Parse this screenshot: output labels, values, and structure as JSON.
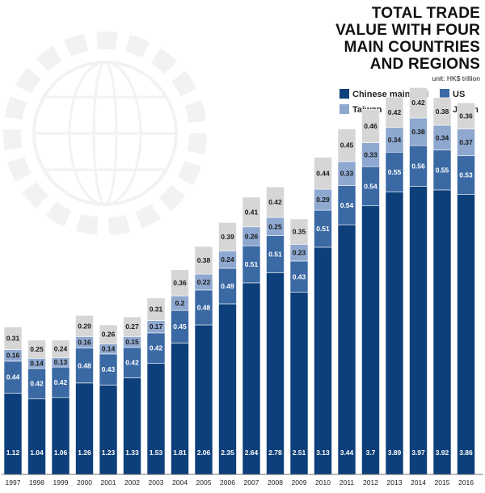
{
  "chart_data": {
    "type": "bar",
    "stacked": true,
    "title_lines": [
      "TOTAL TRADE",
      "VALUE WITH FOUR",
      "MAIN COUNTRIES",
      "AND REGIONS"
    ],
    "unit": "unit: HK$ trillion",
    "legend_placement": "top-right",
    "categories": [
      "1997",
      "1998",
      "1999",
      "2000",
      "2001",
      "2002",
      "2003",
      "2004",
      "2005",
      "2006",
      "2007",
      "2008",
      "2009",
      "2010",
      "2011",
      "2012",
      "2013",
      "2014",
      "2015",
      "2016"
    ],
    "series": [
      {
        "name": "Chinese mainland",
        "color": "#0d3f7a",
        "text_color": "#ffffff",
        "values": [
          1.12,
          1.04,
          1.06,
          1.26,
          1.23,
          1.33,
          1.53,
          1.81,
          2.06,
          2.35,
          2.64,
          2.78,
          2.51,
          3.13,
          3.44,
          3.7,
          3.89,
          3.97,
          3.92,
          3.86
        ]
      },
      {
        "name": "US",
        "color": "#3b69a4",
        "text_color": "#ffffff",
        "values": [
          0.44,
          0.42,
          0.42,
          0.48,
          0.43,
          0.42,
          0.42,
          0.45,
          0.48,
          0.49,
          0.51,
          0.51,
          0.43,
          0.51,
          0.54,
          0.54,
          0.55,
          0.56,
          0.55,
          0.53
        ]
      },
      {
        "name": "Taiwan",
        "color": "#8ea8cf",
        "text_color": "#1a1a1a",
        "values": [
          0.16,
          0.14,
          0.13,
          0.16,
          0.14,
          0.15,
          0.17,
          0.2,
          0.22,
          0.24,
          0.26,
          0.25,
          0.23,
          0.29,
          0.33,
          0.33,
          0.34,
          0.38,
          0.34,
          0.37
        ]
      },
      {
        "name": "Japan",
        "color": "#d6d6d6",
        "text_color": "#1a1a1a",
        "values": [
          0.31,
          0.25,
          0.24,
          0.29,
          0.26,
          0.27,
          0.31,
          0.36,
          0.38,
          0.39,
          0.41,
          0.42,
          0.35,
          0.44,
          0.45,
          0.46,
          0.42,
          0.42,
          0.38,
          0.36
        ]
      }
    ],
    "ylim": [
      0,
      5.2
    ],
    "grid": false,
    "bar_labels": true
  }
}
